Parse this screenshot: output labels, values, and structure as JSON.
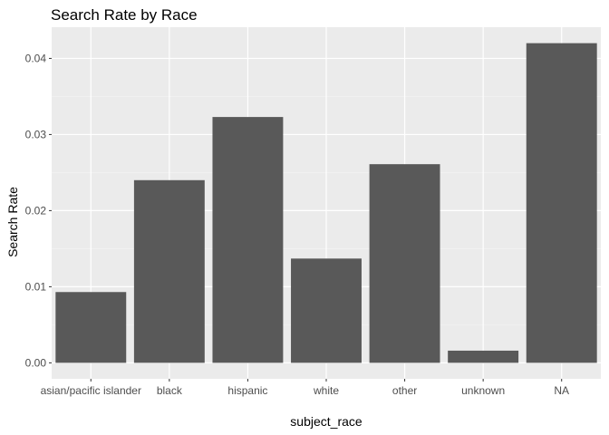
{
  "chart_data": {
    "type": "bar",
    "title": "Search Rate by Race",
    "xlabel": "subject_race",
    "ylabel": "Search Rate",
    "categories": [
      "asian/pacific islander",
      "black",
      "hispanic",
      "white",
      "other",
      "unknown",
      "NA"
    ],
    "values": [
      0.0093,
      0.024,
      0.0323,
      0.0137,
      0.0261,
      0.0016,
      0.042
    ],
    "ylim": [
      -0.0021,
      0.0441
    ],
    "yticks": [
      0.0,
      0.01,
      0.02,
      0.03,
      0.04
    ],
    "ytick_labels": [
      "0.00",
      "0.01",
      "0.02",
      "0.03",
      "0.04"
    ],
    "grid": true,
    "legend": "none",
    "colors": {
      "panel_background": "#ebebeb",
      "grid_major": "#ffffff",
      "grid_minor": "#f5f5f5",
      "bar_fill": "#595959",
      "tick_label": "#4d4d4d",
      "tick_mark": "#333333"
    }
  }
}
